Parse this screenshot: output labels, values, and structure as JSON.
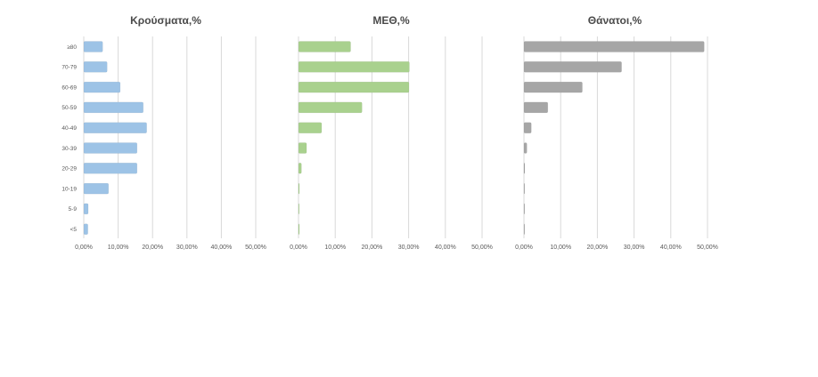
{
  "colors": {
    "series": [
      "#9dc3e6",
      "#a9d18e",
      "#a6a6a6"
    ],
    "grid": "#d9d9d9"
  },
  "chart_data": [
    {
      "type": "bar",
      "orientation": "horizontal",
      "title": "Κρούσματα,%",
      "categories": [
        "≥80",
        "70-79",
        "60-69",
        "50-59",
        "40-49",
        "30-39",
        "20-29",
        "10-19",
        "5-9",
        "<5"
      ],
      "values": [
        5.5,
        6.8,
        10.6,
        17.3,
        18.3,
        15.5,
        15.5,
        7.2,
        1.3,
        1.2
      ],
      "xlim": [
        0,
        50
      ],
      "xticks": [
        "0,00%",
        "10,00%",
        "20,00%",
        "30,00%",
        "40,00%",
        "50,00%"
      ],
      "grid": true
    },
    {
      "type": "bar",
      "orientation": "horizontal",
      "title": "ΜΕΘ,%",
      "categories": [
        "≥80",
        "70-79",
        "60-69",
        "50-59",
        "40-49",
        "30-39",
        "20-29",
        "10-19",
        "5-9",
        "<5"
      ],
      "values": [
        14.2,
        30.2,
        30.1,
        17.3,
        6.3,
        2.2,
        0.8,
        0.2,
        0,
        0.1
      ],
      "xlim": [
        0,
        50
      ],
      "xticks": [
        "0,00%",
        "10,00%",
        "20,00%",
        "30,00%",
        "40,00%",
        "50,00%"
      ],
      "grid": true
    },
    {
      "type": "bar",
      "orientation": "horizontal",
      "title": "Θάνατοι,%",
      "categories": [
        "≥80",
        "70-79",
        "60-69",
        "50-59",
        "40-49",
        "30-39",
        "20-29",
        "10-19",
        "5-9",
        "<5"
      ],
      "values": [
        49.1,
        26.6,
        15.9,
        6.5,
        2.0,
        0.8,
        0.2,
        0,
        0,
        0
      ],
      "xlim": [
        0,
        50
      ],
      "xticks": [
        "0,00%",
        "10,00%",
        "20,00%",
        "30,00%",
        "40,00%",
        "50,00%"
      ],
      "grid": true
    }
  ]
}
